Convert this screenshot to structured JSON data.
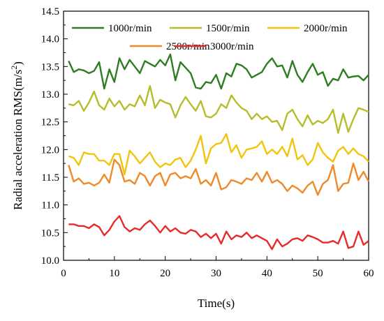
{
  "chart_data": {
    "type": "line",
    "xlabel": "Time(s)",
    "ylabel": "Radial acceleration RMS(m/s",
    "ylabel_sup": "2",
    "ylabel_end": ")",
    "xlim": [
      0,
      60
    ],
    "ylim": [
      10.0,
      14.5
    ],
    "xticks": [
      "0",
      "10",
      "20",
      "30",
      "40",
      "50",
      "60"
    ],
    "yticks": [
      "10.0",
      "10.5",
      "11.0",
      "11.5",
      "12.0",
      "12.5",
      "13.0",
      "13.5",
      "14.0",
      "14.5"
    ],
    "grid": false,
    "legend_position": "top",
    "x": [
      1,
      2,
      3,
      4,
      5,
      6,
      7,
      8,
      9,
      10,
      11,
      12,
      13,
      14,
      15,
      16,
      17,
      18,
      19,
      20,
      21,
      22,
      23,
      24,
      25,
      26,
      27,
      28,
      29,
      30,
      31,
      32,
      33,
      34,
      35,
      36,
      37,
      38,
      39,
      40,
      41,
      42,
      43,
      44,
      45,
      46,
      47,
      48,
      49,
      50,
      51,
      52,
      53,
      54,
      55,
      56,
      57,
      58,
      59,
      60
    ],
    "series": [
      {
        "name": "1000r/min",
        "color": "#2e7d22",
        "values": [
          13.6,
          13.4,
          13.45,
          13.43,
          13.38,
          13.42,
          13.58,
          13.1,
          13.45,
          13.22,
          13.65,
          13.45,
          13.62,
          13.5,
          13.38,
          13.6,
          13.55,
          13.5,
          13.62,
          13.52,
          13.72,
          13.25,
          13.58,
          13.48,
          13.38,
          13.12,
          13.1,
          13.22,
          13.2,
          13.35,
          13.1,
          13.38,
          13.32,
          13.55,
          13.52,
          13.45,
          13.3,
          13.35,
          13.4,
          13.55,
          13.65,
          13.5,
          13.52,
          13.3,
          13.6,
          13.35,
          13.22,
          13.4,
          13.55,
          13.35,
          13.4,
          13.15,
          13.28,
          13.25,
          13.45,
          13.3,
          13.32,
          13.33,
          13.25,
          13.35
        ]
      },
      {
        "name": "1500r/min",
        "color": "#b5bd2a",
        "values": [
          12.82,
          12.8,
          12.88,
          12.7,
          12.85,
          13.05,
          12.8,
          12.72,
          12.92,
          12.78,
          12.88,
          12.72,
          12.82,
          12.78,
          12.98,
          12.8,
          13.15,
          12.75,
          12.9,
          12.85,
          12.82,
          12.58,
          12.8,
          12.95,
          12.82,
          12.7,
          12.88,
          12.6,
          12.58,
          12.65,
          12.82,
          12.75,
          12.98,
          12.85,
          12.75,
          12.7,
          12.55,
          12.65,
          12.55,
          12.6,
          12.5,
          12.52,
          12.35,
          12.65,
          12.72,
          12.55,
          12.42,
          12.62,
          12.45,
          12.52,
          12.48,
          12.55,
          12.72,
          12.3,
          12.65,
          12.32,
          12.55,
          12.75,
          12.72,
          12.68
        ]
      },
      {
        "name": "2000r/min",
        "color": "#f2c40e",
        "values": [
          11.88,
          11.85,
          11.72,
          11.95,
          11.92,
          11.92,
          11.8,
          11.8,
          11.72,
          11.92,
          11.92,
          11.55,
          11.98,
          11.88,
          11.75,
          11.85,
          11.95,
          11.78,
          11.68,
          11.75,
          11.72,
          11.82,
          11.85,
          11.68,
          11.8,
          12.0,
          12.25,
          11.75,
          12.02,
          12.1,
          12.12,
          12.28,
          11.95,
          12.08,
          11.85,
          12.0,
          12.02,
          12.05,
          12.15,
          11.92,
          12.0,
          11.92,
          12.05,
          11.88,
          12.2,
          11.82,
          11.9,
          11.72,
          11.82,
          12.12,
          11.95,
          11.85,
          11.78,
          11.98,
          12.05,
          11.92,
          12.02,
          11.92,
          11.88,
          11.78
        ]
      },
      {
        "name": "2500r/min",
        "color": "#f08a28",
        "values": [
          11.72,
          11.42,
          11.48,
          11.38,
          11.4,
          11.35,
          11.4,
          11.55,
          11.4,
          11.82,
          11.72,
          11.42,
          11.45,
          11.38,
          11.58,
          11.52,
          11.35,
          11.52,
          11.58,
          11.35,
          11.55,
          11.58,
          11.48,
          11.52,
          11.48,
          11.65,
          11.38,
          11.45,
          11.35,
          11.58,
          11.28,
          11.32,
          11.45,
          11.42,
          11.38,
          11.48,
          11.45,
          11.58,
          11.42,
          11.6,
          11.4,
          11.45,
          11.38,
          11.25,
          11.35,
          11.3,
          11.22,
          11.35,
          11.42,
          11.18,
          11.38,
          11.45,
          11.72,
          11.25,
          11.38,
          11.4,
          11.75,
          11.45,
          11.6,
          11.42
        ]
      },
      {
        "name": "3000r/min",
        "color": "#e82a2a",
        "values": [
          10.65,
          10.65,
          10.62,
          10.62,
          10.58,
          10.65,
          10.6,
          10.45,
          10.55,
          10.7,
          10.8,
          10.6,
          10.52,
          10.58,
          10.55,
          10.65,
          10.72,
          10.62,
          10.5,
          10.62,
          10.52,
          10.58,
          10.5,
          10.48,
          10.55,
          10.52,
          10.42,
          10.48,
          10.4,
          10.48,
          10.3,
          10.52,
          10.38,
          10.45,
          10.42,
          10.5,
          10.4,
          10.45,
          10.4,
          10.35,
          10.2,
          10.38,
          10.25,
          10.3,
          10.38,
          10.4,
          10.35,
          10.45,
          10.42,
          10.38,
          10.32,
          10.32,
          10.35,
          10.3,
          10.52,
          10.22,
          10.25,
          10.52,
          10.28,
          10.35
        ]
      }
    ]
  }
}
